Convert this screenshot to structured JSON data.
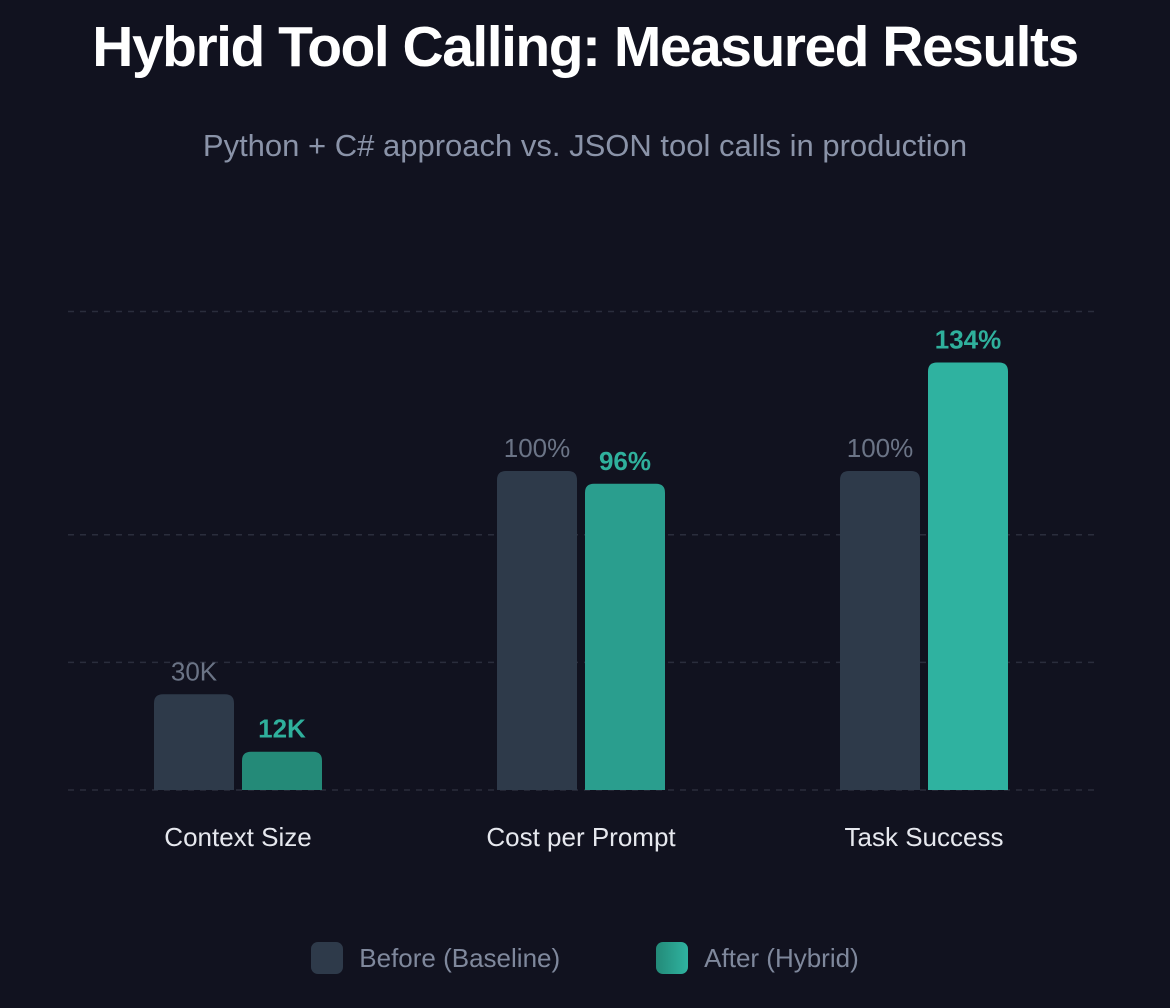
{
  "chart_data": {
    "type": "bar",
    "title": "Hybrid Tool Calling: Measured Results",
    "subtitle": "Python + C# approach vs. JSON tool calls in production",
    "categories": [
      "Context Size",
      "Cost per Prompt",
      "Task Success"
    ],
    "series": [
      {
        "name": "Before (Baseline)",
        "values": [
          30,
          100,
          100
        ],
        "labels": [
          "30K",
          "100%",
          "100%"
        ],
        "color": "#2e3a4a",
        "label_color": "#6b7486"
      },
      {
        "name": "After (Hybrid)",
        "values": [
          12,
          96,
          134
        ],
        "labels": [
          "12K",
          "96%",
          "134%"
        ],
        "colors": [
          "#248a78",
          "#2a9e8e",
          "#2fb2a0"
        ],
        "label_color": "#2fb09c"
      }
    ],
    "ylim": [
      0,
      150
    ],
    "grid": true,
    "legend": "bottom-center"
  }
}
